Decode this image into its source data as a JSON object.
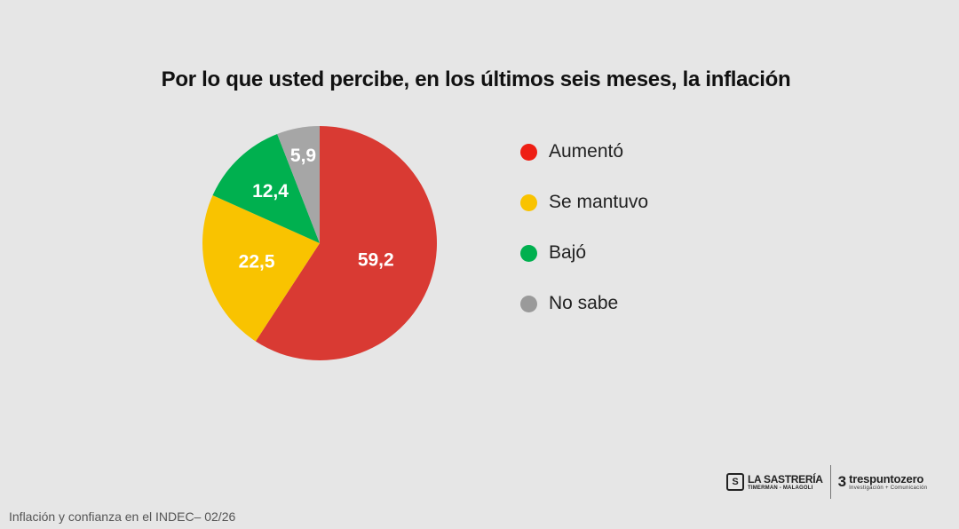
{
  "chart_data": {
    "type": "pie",
    "title": "Por lo que usted percibe, en los últimos seis meses, la inflación",
    "categories": [
      "Aumentó",
      "Se mantuvo",
      "Bajó",
      "No sabe"
    ],
    "values": [
      59.2,
      22.5,
      12.4,
      5.9
    ],
    "value_labels": [
      "59,2",
      "22,5",
      "12,4",
      "5,9"
    ],
    "colors": [
      "#d93a33",
      "#f9c300",
      "#00b04f",
      "#a6a6a6"
    ],
    "legend_colors": [
      "#ee1f14",
      "#f9c300",
      "#00b04f",
      "#9a9a9a"
    ],
    "legend": "right",
    "start_angle": "12 o'clock, clockwise"
  },
  "logos": {
    "sastreria": {
      "name": "LA SASTRERÍA",
      "sub": "TIMERMAN - MALAGOLI",
      "mark": "S"
    },
    "trespuntozero": {
      "mark": "3",
      "name": "trespuntozero",
      "sub": "Investigación + Comunicación"
    }
  },
  "footer": "Inflación y confianza en el INDEC– 02/26"
}
